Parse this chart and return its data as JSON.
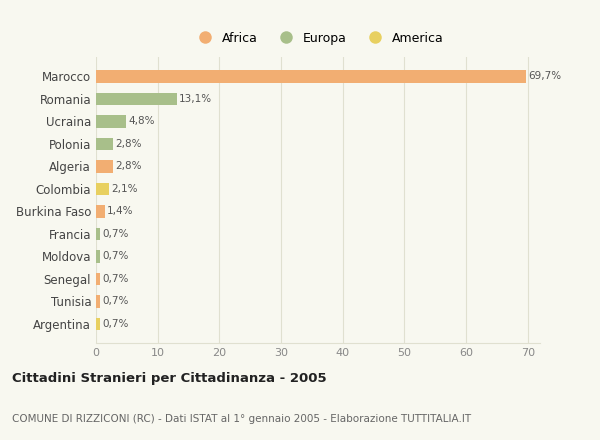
{
  "categories": [
    "Marocco",
    "Romania",
    "Ucraina",
    "Polonia",
    "Algeria",
    "Colombia",
    "Burkina Faso",
    "Francia",
    "Moldova",
    "Senegal",
    "Tunisia",
    "Argentina"
  ],
  "values": [
    69.7,
    13.1,
    4.8,
    2.8,
    2.8,
    2.1,
    1.4,
    0.7,
    0.7,
    0.7,
    0.7,
    0.7
  ],
  "labels": [
    "69,7%",
    "13,1%",
    "4,8%",
    "2,8%",
    "2,8%",
    "2,1%",
    "1,4%",
    "0,7%",
    "0,7%",
    "0,7%",
    "0,7%",
    "0,7%"
  ],
  "continents": [
    "Africa",
    "Europa",
    "Europa",
    "Europa",
    "Africa",
    "America",
    "Africa",
    "Europa",
    "Europa",
    "Africa",
    "Africa",
    "America"
  ],
  "colors": {
    "Africa": "#F2AE72",
    "Europa": "#A8BF8A",
    "America": "#E8D060"
  },
  "title": "Cittadini Stranieri per Cittadinanza - 2005",
  "subtitle": "COMUNE DI RIZZICONI (RC) - Dati ISTAT al 1° gennaio 2005 - Elaborazione TUTTITALIA.IT",
  "xlim": [
    0,
    72
  ],
  "xticks": [
    0,
    10,
    20,
    30,
    40,
    50,
    60,
    70
  ],
  "background_color": "#f8f8f0",
  "grid_color": "#e0e0d0"
}
